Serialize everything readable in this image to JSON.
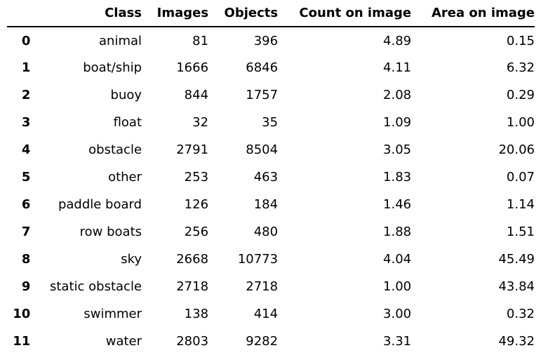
{
  "table": {
    "columns": [
      "Class",
      "Images",
      "Objects",
      "Count on image",
      "Area on image"
    ],
    "rows": [
      {
        "index": "0",
        "class": "animal",
        "images": "81",
        "objects": "396",
        "count": "4.89",
        "area": "0.15"
      },
      {
        "index": "1",
        "class": "boat/ship",
        "images": "1666",
        "objects": "6846",
        "count": "4.11",
        "area": "6.32"
      },
      {
        "index": "2",
        "class": "buoy",
        "images": "844",
        "objects": "1757",
        "count": "2.08",
        "area": "0.29"
      },
      {
        "index": "3",
        "class": "float",
        "images": "32",
        "objects": "35",
        "count": "1.09",
        "area": "1.00"
      },
      {
        "index": "4",
        "class": "obstacle",
        "images": "2791",
        "objects": "8504",
        "count": "3.05",
        "area": "20.06"
      },
      {
        "index": "5",
        "class": "other",
        "images": "253",
        "objects": "463",
        "count": "1.83",
        "area": "0.07"
      },
      {
        "index": "6",
        "class": "paddle board",
        "images": "126",
        "objects": "184",
        "count": "1.46",
        "area": "1.14"
      },
      {
        "index": "7",
        "class": "row boats",
        "images": "256",
        "objects": "480",
        "count": "1.88",
        "area": "1.51"
      },
      {
        "index": "8",
        "class": "sky",
        "images": "2668",
        "objects": "10773",
        "count": "4.04",
        "area": "45.49"
      },
      {
        "index": "9",
        "class": "static obstacle",
        "images": "2718",
        "objects": "2718",
        "count": "1.00",
        "area": "43.84"
      },
      {
        "index": "10",
        "class": "swimmer",
        "images": "138",
        "objects": "414",
        "count": "3.00",
        "area": "0.32"
      },
      {
        "index": "11",
        "class": "water",
        "images": "2803",
        "objects": "9282",
        "count": "3.31",
        "area": "49.32"
      }
    ]
  }
}
